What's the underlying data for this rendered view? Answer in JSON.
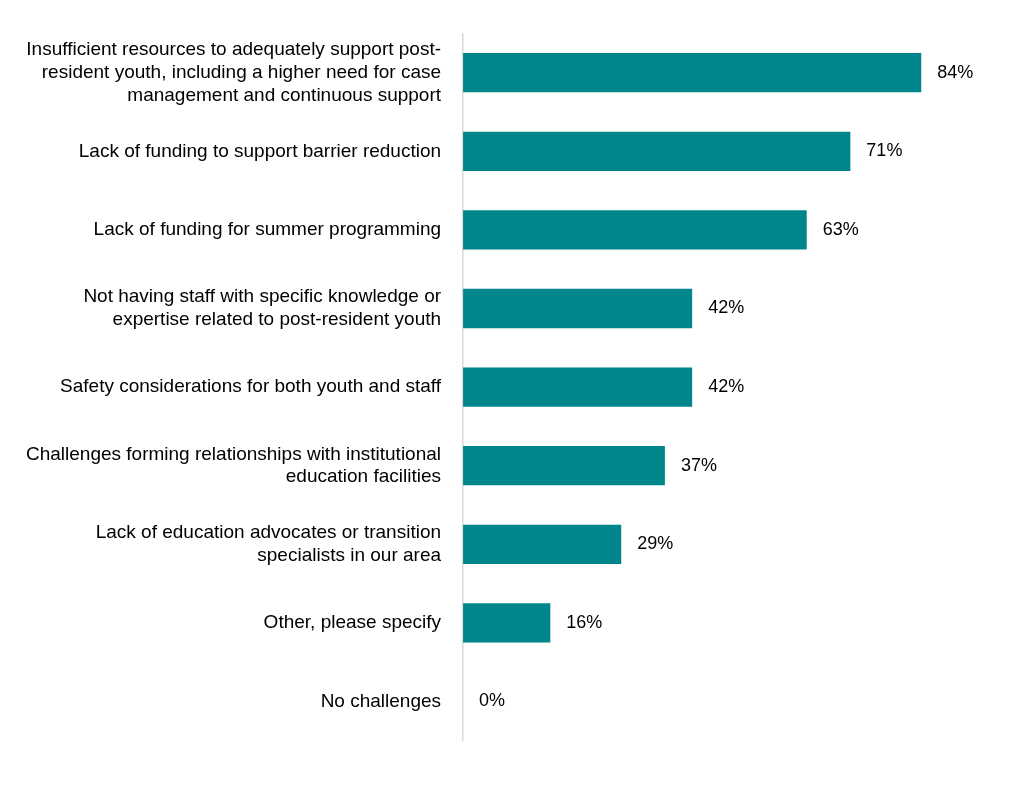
{
  "chart_data": {
    "type": "bar",
    "orientation": "horizontal",
    "categories": [
      "Insufficient resources to adequately support post-resident youth, including a higher need for case management and continuous support",
      "Lack of funding to support barrier reduction",
      "Lack of funding for summer programming",
      "Not having staff with specific knowledge or expertise related to post-resident youth",
      "Safety considerations for both youth and staff",
      "Challenges forming relationships with institutional education facilities",
      "Lack of education advocates or transition specialists in our area",
      "Other, please specify",
      "No challenges"
    ],
    "values": [
      84,
      71,
      63,
      42,
      42,
      37,
      29,
      16,
      0
    ],
    "value_labels": [
      "84%",
      "71%",
      "63%",
      "42%",
      "42%",
      "37%",
      "29%",
      "16%",
      "0%"
    ],
    "color": "#00868a",
    "legend": false
  }
}
